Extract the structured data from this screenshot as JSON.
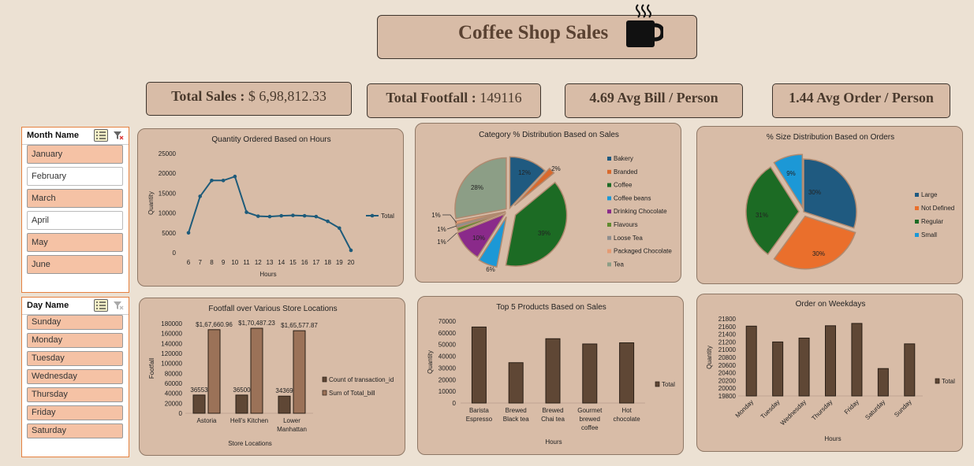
{
  "header": {
    "title": "Coffee Shop Sales",
    "icon": "coffee-mug-icon"
  },
  "kpis": {
    "total_sales_label": "Total Sales : ",
    "total_sales_value": "$ 6,98,812.33",
    "footfall_label": "Total Footfall : ",
    "footfall_value": "149116",
    "avg_bill": "4.69 Avg Bill / Person",
    "avg_order": "1.44 Avg Order / Person"
  },
  "month_slicer": {
    "title": "Month Name",
    "items": [
      {
        "label": "January",
        "selected": true
      },
      {
        "label": "February",
        "selected": false
      },
      {
        "label": "March",
        "selected": true
      },
      {
        "label": "April",
        "selected": false
      },
      {
        "label": "May",
        "selected": true
      },
      {
        "label": "June",
        "selected": true
      }
    ]
  },
  "day_slicer": {
    "title": "Day Name",
    "items": [
      "Sunday",
      "Monday",
      "Tuesday",
      "Wednesday",
      "Thursday",
      "Friday",
      "Saturday"
    ]
  },
  "colors": {
    "panel": "#d8bca7",
    "bar": "#5f4735",
    "line": "#1e5b7a",
    "slicer_sel": "#f5c2a5"
  },
  "chart_data": [
    {
      "id": "hours",
      "type": "line",
      "title": "Quantity Ordered Based on Hours",
      "xlabel": "Hours",
      "ylabel": "Quantity",
      "x": [
        "6",
        "7",
        "8",
        "9",
        "10",
        "11",
        "12",
        "13",
        "14",
        "15",
        "16",
        "17",
        "18",
        "19",
        "20"
      ],
      "series": [
        {
          "name": "Total",
          "values": [
            5000,
            14200,
            18200,
            18200,
            19200,
            10200,
            9200,
            9100,
            9300,
            9400,
            9300,
            9100,
            7900,
            6200,
            600
          ]
        }
      ],
      "yticks": [
        "25000",
        "20000",
        "15000",
        "10000",
        "5000",
        "0"
      ],
      "ylim": [
        0,
        25000
      ]
    },
    {
      "id": "category",
      "type": "pie",
      "title": "Category % Distribution Based on Sales",
      "slices": [
        {
          "name": "Bakery",
          "value": 12,
          "label": "12%",
          "color": "#1f5a80"
        },
        {
          "name": "Branded",
          "value": 2,
          "label": "2%",
          "color": "#d9692c"
        },
        {
          "name": "Coffee",
          "value": 39,
          "label": "39%",
          "color": "#1c6b24"
        },
        {
          "name": "Coffee beans",
          "value": 6,
          "label": "6%",
          "color": "#1c98d6"
        },
        {
          "name": "Drinking Chocolate",
          "value": 10,
          "label": "10%",
          "color": "#8a2a8a"
        },
        {
          "name": "Flavours",
          "value": 1,
          "label": "1%",
          "color": "#5f8b2e"
        },
        {
          "name": "Loose Tea",
          "value": 1,
          "label": "1%",
          "color": "#8f8f8f"
        },
        {
          "name": "Packaged Chocolate",
          "value": 1,
          "label": "1%",
          "color": "#e59a73"
        },
        {
          "name": "Tea",
          "value": 28,
          "label": "28%",
          "color": "#8c9e86"
        }
      ]
    },
    {
      "id": "size",
      "type": "pie",
      "title": "% Size Distribution Based on Orders",
      "slices": [
        {
          "name": "Large",
          "value": 30,
          "label": "30%",
          "color": "#1f5a80"
        },
        {
          "name": "Not Defined",
          "value": 30,
          "label": "30%",
          "color": "#ea6f2c"
        },
        {
          "name": "Regular",
          "value": 31,
          "label": "31%",
          "color": "#1c6b24"
        },
        {
          "name": "Small",
          "value": 9,
          "label": "9%",
          "color": "#1c98d6"
        }
      ]
    },
    {
      "id": "locations",
      "type": "bar",
      "title": "Footfall over Various Store Locations",
      "xlabel": "Store Locations",
      "ylabel": "Footfall",
      "categories": [
        "Astoria",
        "Hell's Kitchen",
        "Lower Manhattan"
      ],
      "series": [
        {
          "name": "Count of transaction_id",
          "values": [
            36553,
            36500,
            34369
          ],
          "labels": [
            "36553",
            "36500",
            "34369"
          ],
          "color": "#5f4735"
        },
        {
          "name": "Sum of Total_bill",
          "values": [
            167660.96,
            170487.23,
            165577.87
          ],
          "labels": [
            "$1,67,660.96",
            "$1,70,487.23",
            "$1,65,577.87"
          ],
          "color": "#9b7258"
        }
      ],
      "yticks": [
        "180000",
        "160000",
        "140000",
        "120000",
        "100000",
        "80000",
        "60000",
        "40000",
        "20000",
        "0"
      ],
      "ylim": [
        0,
        180000
      ]
    },
    {
      "id": "products",
      "type": "bar",
      "title": "Top 5 Products Based on Sales",
      "xlabel": "Hours",
      "ylabel": "Quantity",
      "categories": [
        "Barista Espresso",
        "Brewed Black tea",
        "Brewed Chai tea",
        "Gourmet brewed coffee",
        "Hot chocolate"
      ],
      "series": [
        {
          "name": "Total",
          "values": [
            65000,
            34500,
            55000,
            50500,
            51500
          ]
        }
      ],
      "yticks": [
        "70000",
        "60000",
        "50000",
        "40000",
        "30000",
        "20000",
        "10000",
        "0"
      ],
      "ylim": [
        0,
        70000
      ]
    },
    {
      "id": "weekdays",
      "type": "bar",
      "title": "Order on Weekdays",
      "xlabel": "Hours",
      "ylabel": "Quantity",
      "categories": [
        "Monday",
        "Tuesday",
        "Wednesday",
        "Thursday",
        "Friday",
        "Saturday",
        "Sunday"
      ],
      "series": [
        {
          "name": "Total",
          "values": [
            21610,
            21200,
            21300,
            21620,
            21680,
            20510,
            21150
          ]
        }
      ],
      "yticks": [
        "21800",
        "21600",
        "21400",
        "21200",
        "21000",
        "20800",
        "20600",
        "20400",
        "20200",
        "20000",
        "19800"
      ],
      "ylim": [
        19800,
        21800
      ]
    }
  ]
}
